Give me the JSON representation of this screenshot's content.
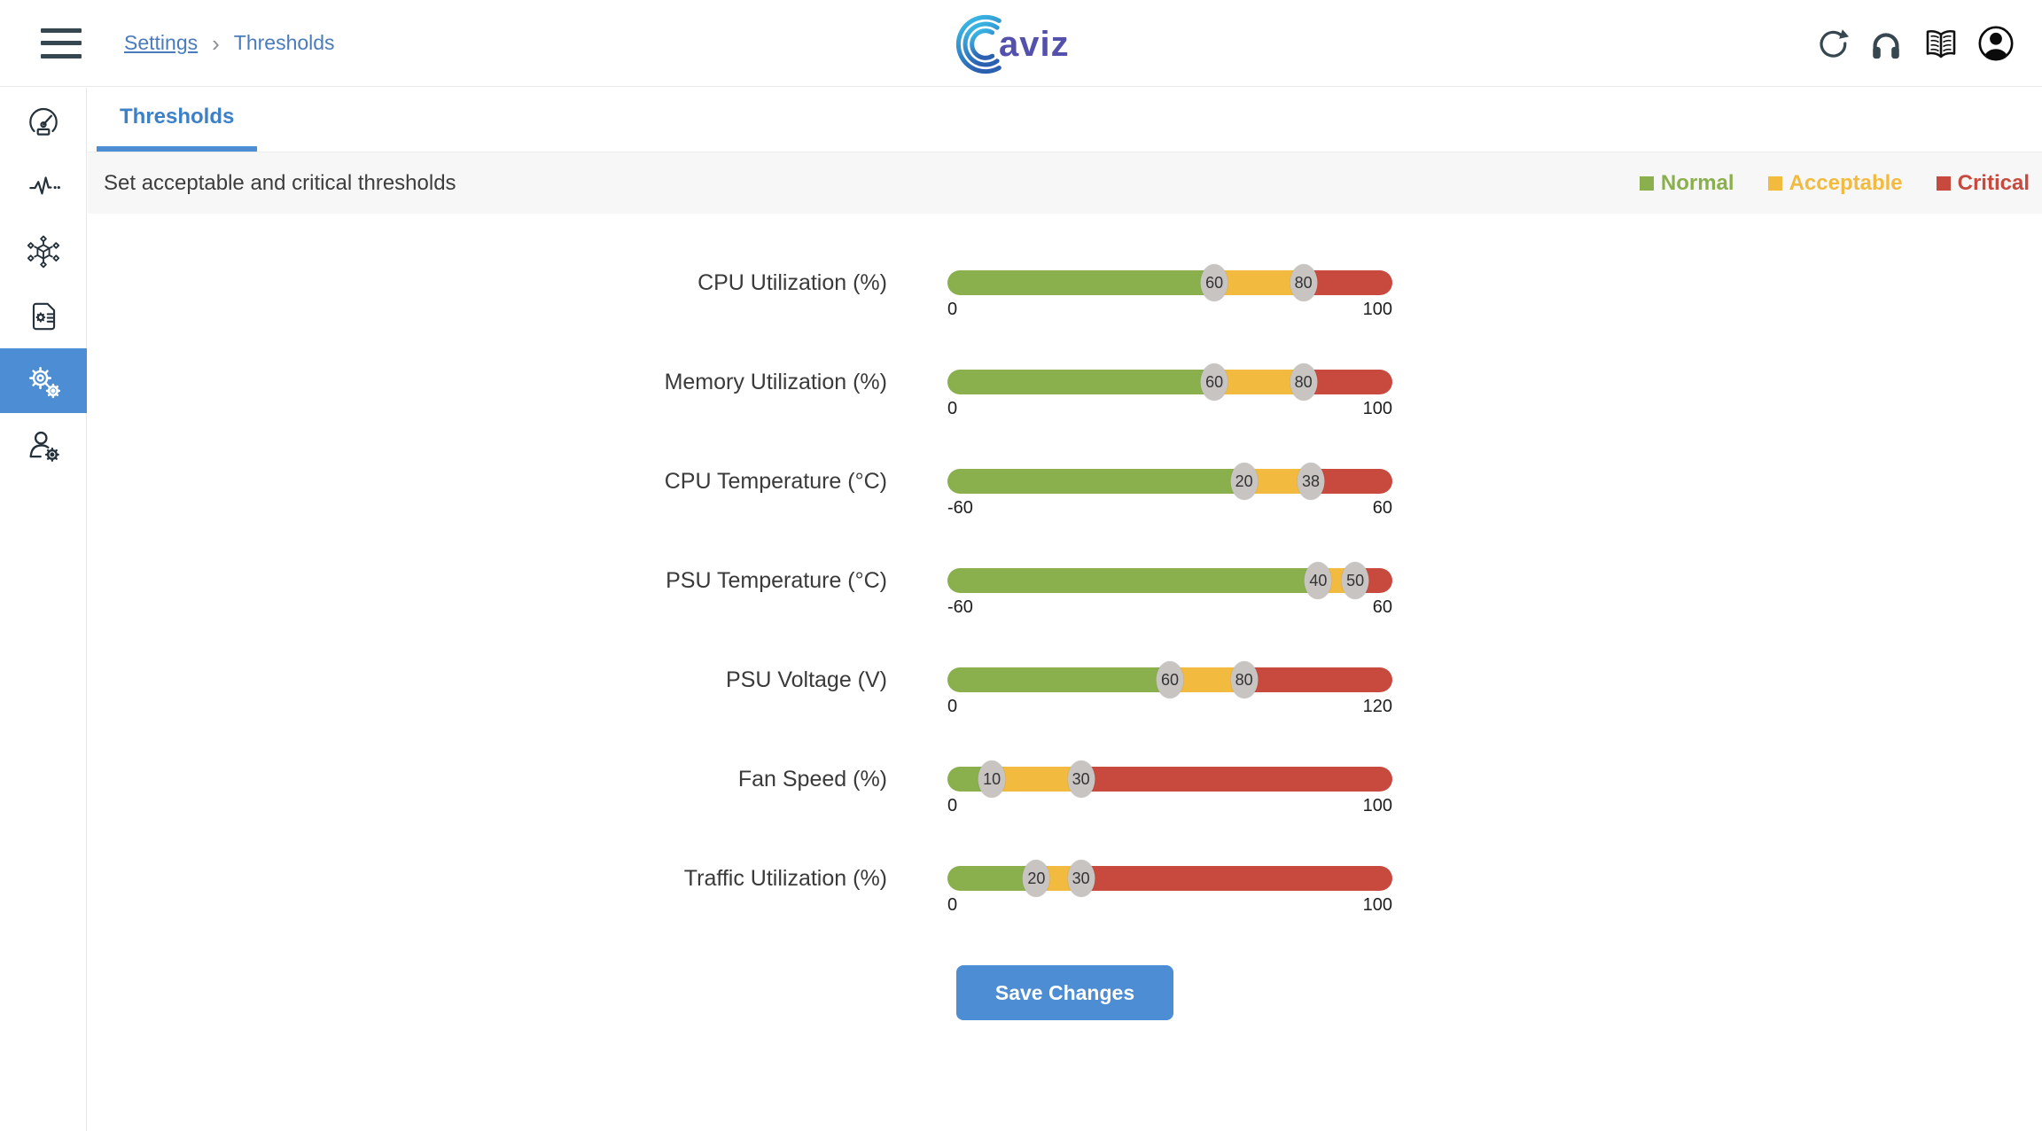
{
  "header": {
    "breadcrumb": {
      "items": [
        "Settings",
        "Thresholds"
      ],
      "separator": "›"
    },
    "logo_text": "aviz",
    "icons": [
      "refresh-icon",
      "headphones-icon",
      "docs-book-icon",
      "account-icon"
    ]
  },
  "sidebar": {
    "items": [
      {
        "icon": "gauge-dashboard-icon",
        "active": false
      },
      {
        "icon": "health-pulse-icon",
        "active": false
      },
      {
        "icon": "network-topology-icon",
        "active": false
      },
      {
        "icon": "config-document-icon",
        "active": false
      },
      {
        "icon": "settings-gears-icon",
        "active": true
      },
      {
        "icon": "user-settings-icon",
        "active": false
      }
    ]
  },
  "tabs": {
    "items": [
      {
        "label": "Thresholds",
        "active": true
      }
    ]
  },
  "subheader": {
    "description": "Set acceptable and critical thresholds",
    "legend": [
      {
        "label": "Normal",
        "color": "#8ab04d"
      },
      {
        "label": "Acceptable",
        "color": "#f2bb40"
      },
      {
        "label": "Critical",
        "color": "#c8493d"
      }
    ]
  },
  "thresholds": {
    "rows": [
      {
        "label": "CPU Utilization (%)",
        "min": 0,
        "max": 100,
        "acceptable": 60,
        "critical": 80
      },
      {
        "label": "Memory Utilization (%)",
        "min": 0,
        "max": 100,
        "acceptable": 60,
        "critical": 80
      },
      {
        "label": "CPU Temperature (°C)",
        "min": -60,
        "max": 60,
        "acceptable": 20,
        "critical": 38
      },
      {
        "label": "PSU Temperature (°C)",
        "min": -60,
        "max": 60,
        "acceptable": 40,
        "critical": 50
      },
      {
        "label": "PSU Voltage (V)",
        "min": 0,
        "max": 120,
        "acceptable": 60,
        "critical": 80
      },
      {
        "label": "Fan Speed (%)",
        "min": 0,
        "max": 100,
        "acceptable": 10,
        "critical": 30
      },
      {
        "label": "Traffic Utilization (%)",
        "min": 0,
        "max": 100,
        "acceptable": 20,
        "critical": 30
      }
    ],
    "save_label": "Save Changes"
  },
  "colors": {
    "normal": "#8ab04d",
    "acceptable": "#f2bb40",
    "critical": "#c8493d",
    "accent_blue": "#4d8dd3",
    "thumb_gray": "#c8c4c2"
  }
}
